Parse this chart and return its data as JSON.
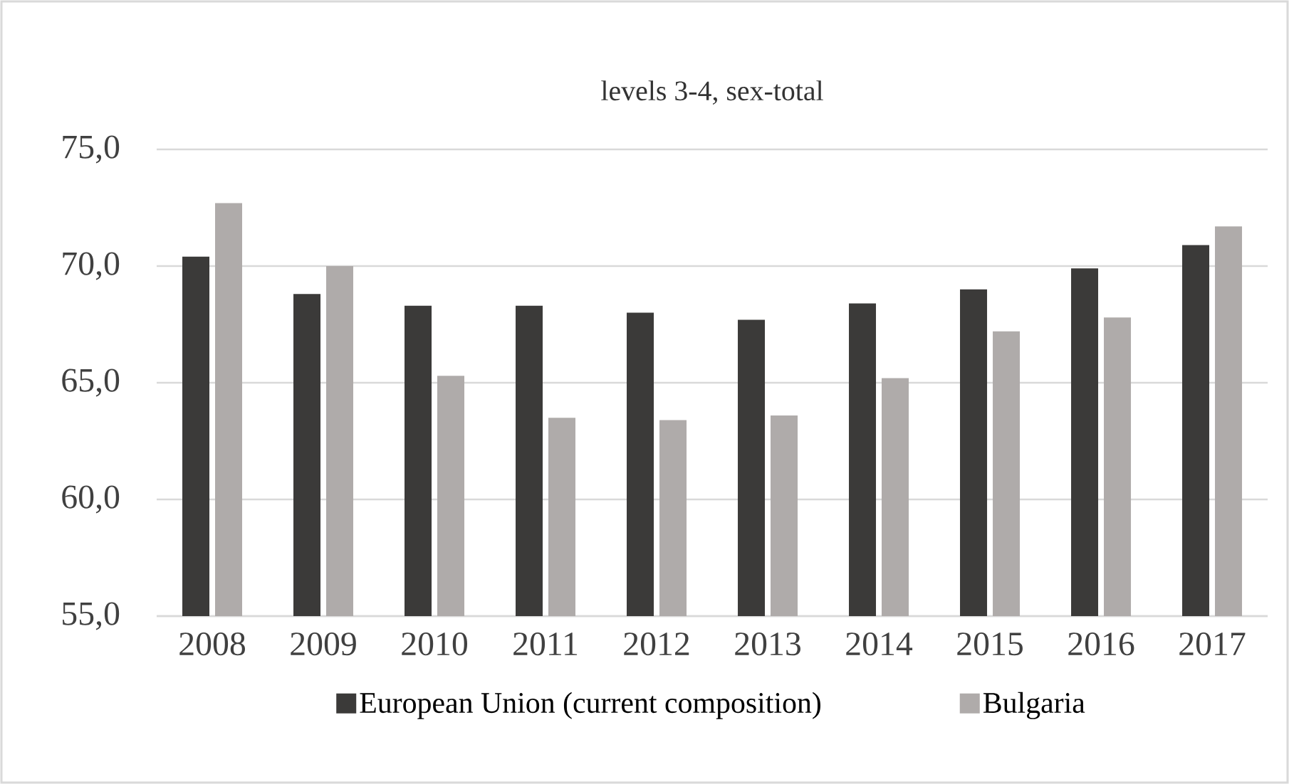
{
  "chart_data": {
    "type": "bar",
    "title": "levels 3-4, sex-total",
    "categories": [
      "2008",
      "2009",
      "2010",
      "2011",
      "2012",
      "2013",
      "2014",
      "2015",
      "2016",
      "2017"
    ],
    "series": [
      {
        "name": "European Union (current composition)",
        "color": "#3b3a39",
        "values": [
          70.4,
          68.8,
          68.3,
          68.3,
          68.0,
          67.7,
          68.4,
          69.0,
          69.9,
          70.9
        ]
      },
      {
        "name": "Bulgaria",
        "color": "#afabaa",
        "values": [
          72.7,
          70.0,
          65.3,
          63.5,
          63.4,
          63.6,
          65.2,
          67.2,
          67.8,
          71.7
        ]
      }
    ],
    "ylim": [
      55,
      75
    ],
    "yticks": [
      {
        "value": 55,
        "label": "55,0"
      },
      {
        "value": 60,
        "label": "60,0"
      },
      {
        "value": 65,
        "label": "65,0"
      },
      {
        "value": 70,
        "label": "70,0"
      },
      {
        "value": 75,
        "label": "75,0"
      }
    ],
    "grid": "y",
    "legend": "bottom"
  }
}
